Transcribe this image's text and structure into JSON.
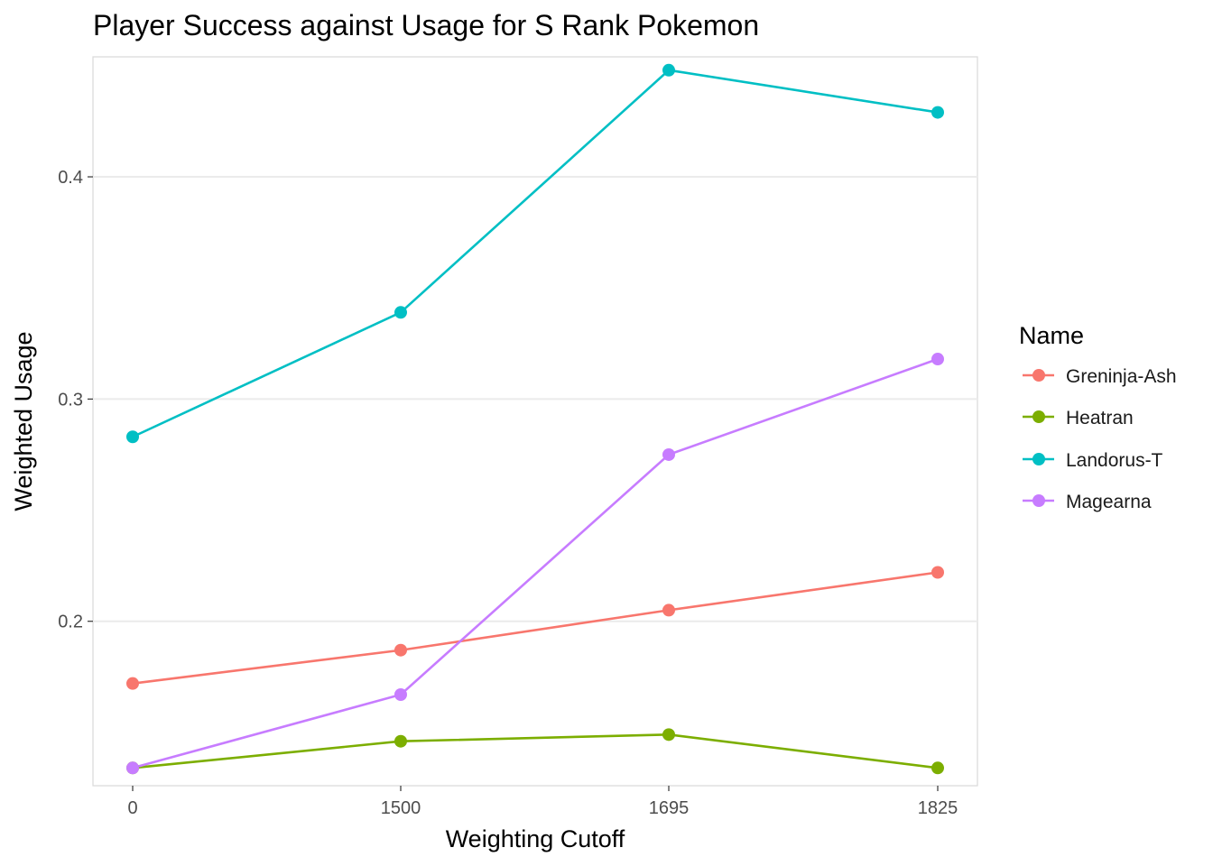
{
  "chart_data": {
    "type": "line",
    "title": "Player Success against Usage for S Rank Pokemon",
    "xlabel": "Weighting Cutoff",
    "ylabel": "Weighted Usage",
    "categories": [
      "0",
      "1500",
      "1695",
      "1825"
    ],
    "ylim": [
      0.126,
      0.454
    ],
    "yticks": [
      0.2,
      0.3,
      0.4
    ],
    "ytick_labels": [
      "0.2",
      "0.3",
      "0.4"
    ],
    "grid": true,
    "legend": {
      "title": "Name",
      "placement": "right"
    },
    "series": [
      {
        "name": "Greninja-Ash",
        "color": "#F8766D",
        "values": [
          0.172,
          0.187,
          0.205,
          0.222
        ]
      },
      {
        "name": "Heatran",
        "color": "#7CAE00",
        "values": [
          0.134,
          0.146,
          0.149,
          0.134
        ]
      },
      {
        "name": "Landorus-T",
        "color": "#00BFC4",
        "values": [
          0.283,
          0.339,
          0.448,
          0.429
        ]
      },
      {
        "name": "Magearna",
        "color": "#C77CFF",
        "values": [
          0.134,
          0.167,
          0.275,
          0.318
        ]
      }
    ]
  }
}
